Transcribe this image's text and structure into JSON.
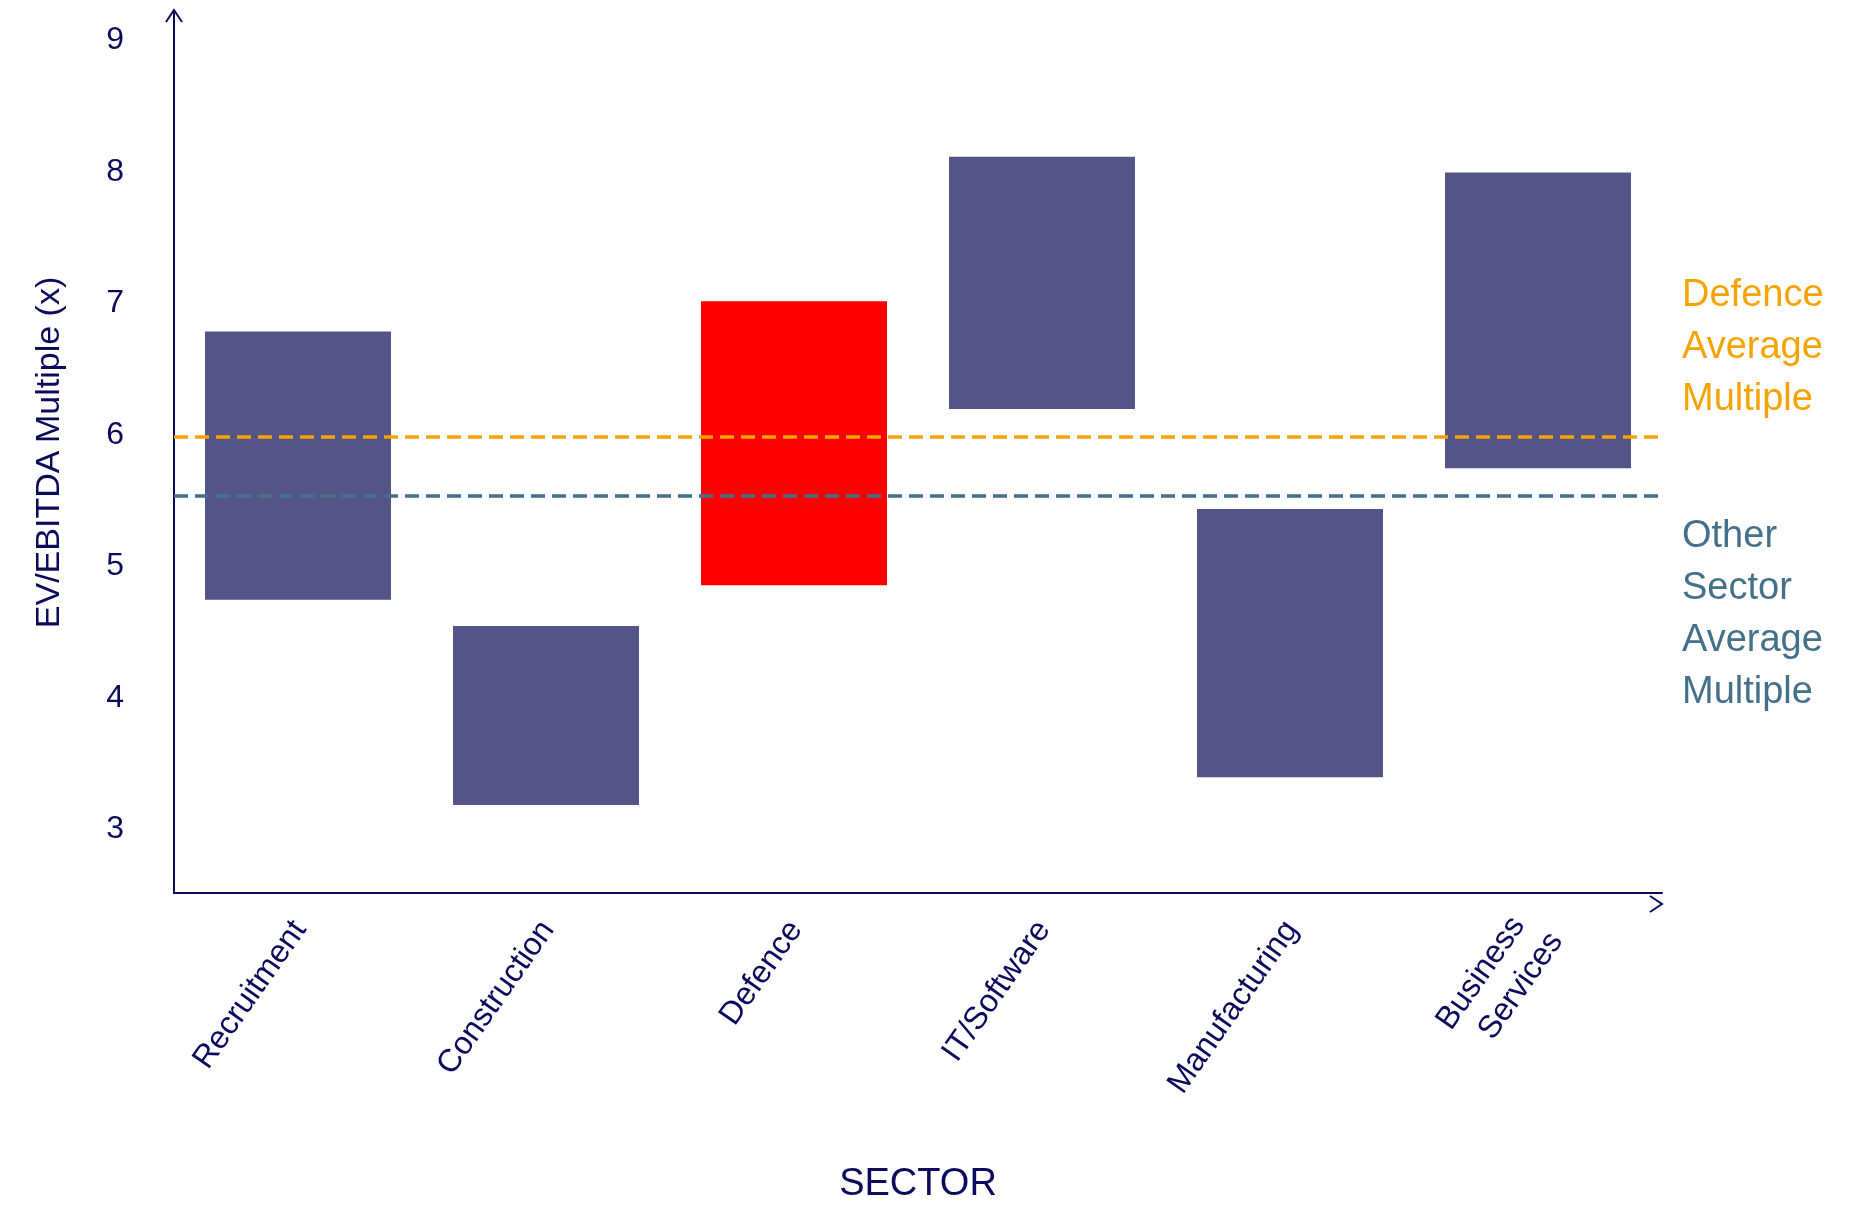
{
  "chart_data": {
    "type": "bar",
    "xlabel": "SECTOR",
    "ylabel": "EV/EBITDA Multiple (x)",
    "categories": [
      "Recruitment",
      "Construction",
      "Defence",
      "IT/Software",
      "Manufacturing",
      "Business Services"
    ],
    "base": [
      4.73,
      3.17,
      4.84,
      6.18,
      3.38,
      5.73
    ],
    "values": [
      2.04,
      1.36,
      2.16,
      1.92,
      2.04,
      2.25
    ],
    "colors": [
      "#545488",
      "#545488",
      "#ff0000",
      "#545488",
      "#545488",
      "#545488"
    ],
    "ylim": [
      2.5,
      9.2
    ],
    "yticks": [
      3,
      4,
      5,
      6,
      7,
      8,
      9
    ],
    "grid": false,
    "ref_lines": [
      {
        "axis": "y",
        "value": 5.97,
        "label": "Defence Average Multiple",
        "color": "#f5a300",
        "line_style": "dashed"
      },
      {
        "axis": "y",
        "value": 5.52,
        "label": "Other Sector Average Multiple",
        "color": "#44708a",
        "line_style": "dashed"
      }
    ]
  }
}
